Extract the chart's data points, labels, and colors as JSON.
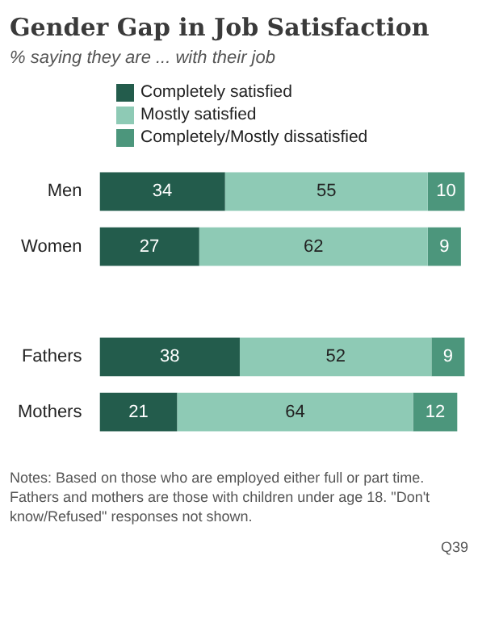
{
  "chart_data": {
    "type": "bar",
    "orientation": "horizontal",
    "stacked": true,
    "title": "Gender Gap in Job Satisfaction",
    "subtitle": "% saying they are ... with their job",
    "categories": [
      "Men",
      "Women",
      null,
      "Fathers",
      "Mothers"
    ],
    "series": [
      {
        "name": "Completely satisfied",
        "color": "#235c4c",
        "values": [
          34,
          27,
          null,
          38,
          21
        ]
      },
      {
        "name": "Mostly satisfied",
        "color": "#8ecab5",
        "values": [
          55,
          62,
          null,
          52,
          64
        ]
      },
      {
        "name": "Completely/Mostly dissatisfied",
        "color": "#4c967c",
        "values": [
          10,
          9,
          null,
          9,
          12
        ]
      }
    ],
    "data_labels": true,
    "legend": "top left",
    "annotations": [
      "Notes: Based on those who are employed either full or part time. Fathers and mothers are those with children under age 18. \"Don't know/Refused\" responses not shown.",
      "Q39"
    ]
  }
}
